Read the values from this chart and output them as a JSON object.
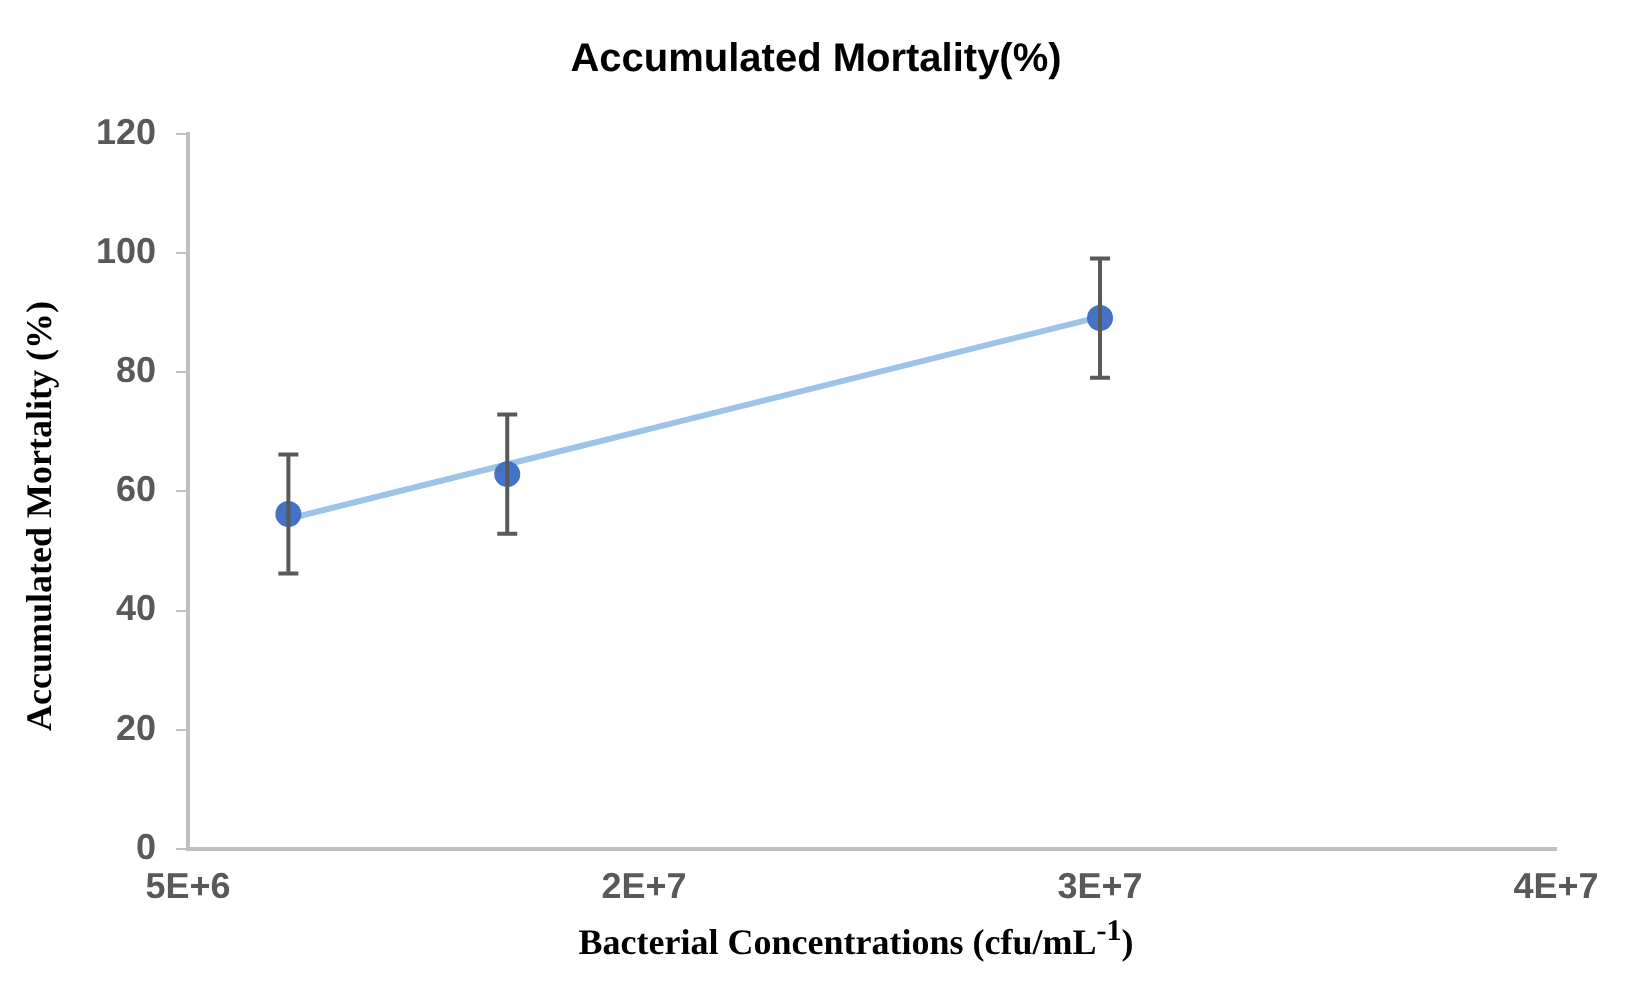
{
  "chart_data": {
    "type": "scatter",
    "title": "Accumulated Mortality(%)",
    "xlabel": "Bacterial Concentrations (cfu/mL$^{-1}$)",
    "ylabel": "Accumulated Mortality (%)",
    "xlim": [
      5000000,
      35000000
    ],
    "xticks": [
      {
        "value": 5000000,
        "label": "5E+6"
      },
      {
        "value": 15000000,
        "label": "2E+7"
      },
      {
        "value": 25000000,
        "label": "3E+7"
      },
      {
        "value": 35000000,
        "label": "4E+7"
      }
    ],
    "ylim": [
      0,
      120
    ],
    "yticks": [
      0,
      20,
      40,
      60,
      80,
      100,
      120
    ],
    "grid": false,
    "legend": false,
    "series": [
      {
        "type": "line",
        "color": "#9dc3e6",
        "x": [
          7200000,
          25000000
        ],
        "values": [
          55.4,
          89.3
        ],
        "marker": "none"
      },
      {
        "color": "#4472c4",
        "x": [
          7200000,
          12000000,
          25000000
        ],
        "values": [
          56.2,
          62.9,
          89.1
        ],
        "errors": [
          10,
          10,
          10
        ],
        "marker": "circle"
      }
    ]
  }
}
